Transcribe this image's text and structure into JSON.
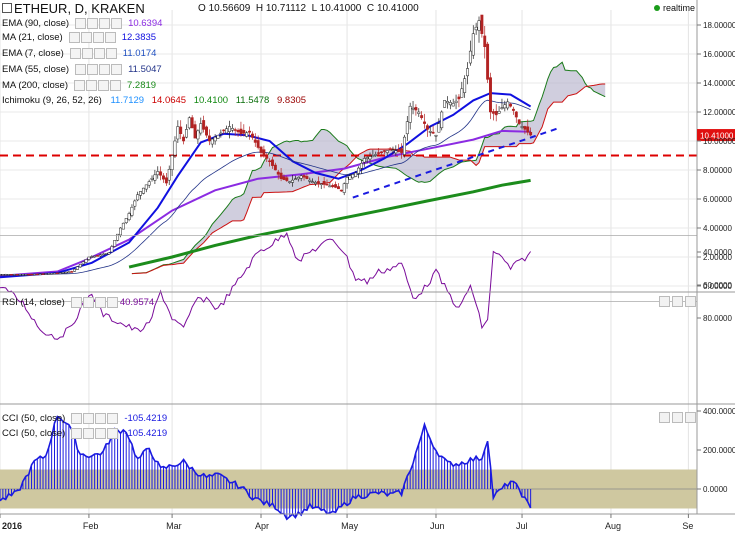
{
  "header": {
    "symbol": "ETHEUR, D, KRAKEN",
    "open_label": "O",
    "open": "10.56609",
    "high_label": "H",
    "high": "10.71112",
    "low_label": "L",
    "low": "10.41000",
    "close_label": "C",
    "close": "10.41000",
    "realtime": "realtime"
  },
  "legend": {
    "ema90": {
      "label": "EMA (90, close)",
      "value": "10.6394",
      "color": "#8b2be2"
    },
    "ma21": {
      "label": "MA (21, close)",
      "value": "12.3835",
      "color": "#1010e0"
    },
    "ema7": {
      "label": "EMA (7, close)",
      "value": "11.0174",
      "color": "#2050c0"
    },
    "ema55": {
      "label": "EMA (55, close)",
      "value": "11.5047",
      "color": "#223388"
    },
    "ma200": {
      "label": "MA (200, close)",
      "value": "7.2819",
      "color": "#1c8c1c"
    },
    "ichimoku": {
      "label": "Ichimoku (9, 26, 52, 26)",
      "values": [
        "11.7129",
        "14.0645",
        "10.4100",
        "11.5478",
        "9.8305"
      ],
      "colors": [
        "#1e90ff",
        "#cc0000",
        "#118811",
        "#0a6e0a",
        "#990000"
      ]
    },
    "rsi": {
      "label": "RSI (14, close)",
      "value": "40.9574",
      "color": "#7a0c9a"
    },
    "cci1": {
      "label": "CCI (50, close)",
      "value": "-105.4219",
      "color": "#1a1ae0"
    },
    "cci2": {
      "label": "CCI (50, close)",
      "value": "-105.4219",
      "color": "#1a1ae0"
    }
  },
  "colors": {
    "up": "#1f1f1f",
    "down": "#b22222",
    "resistance": "#dd0000",
    "trendline": "#1a1ae0",
    "rsi_band": "#d8d4ea",
    "cci_band": "#cfc8a0",
    "cloud": "#b7b3cc",
    "price_tag": "#e01010"
  },
  "chart_data": [
    {
      "type": "candlestick",
      "pane": "price",
      "y_ticks": [
        "18.00000",
        "16.00000",
        "14.00000",
        "12.00000",
        "10.00000",
        "8.00000",
        "6.00000",
        "4.00000",
        "2.00000",
        "0.00000"
      ],
      "ylim": [
        0,
        19
      ],
      "x_ticks": [
        "2016",
        "Feb",
        "Mar",
        "Apr",
        "May",
        "Jun",
        "Jul",
        "Aug",
        "Se"
      ],
      "last_price_label": "10.41000",
      "resistance_level": 9.0,
      "close_path": [
        [
          0,
          0.8
        ],
        [
          10,
          0.8
        ],
        [
          20,
          0.9
        ],
        [
          25,
          1.0
        ],
        [
          31,
          2.0
        ],
        [
          34,
          2.1
        ],
        [
          38,
          2.3
        ],
        [
          42,
          4.0
        ],
        [
          45,
          5.0
        ],
        [
          48,
          6.3
        ],
        [
          52,
          7.2
        ],
        [
          55,
          7.9
        ],
        [
          58,
          7.1
        ],
        [
          60,
          9.0
        ],
        [
          62,
          11.0
        ],
        [
          64,
          10.0
        ],
        [
          66,
          11.6
        ],
        [
          68,
          10.2
        ],
        [
          70,
          11.2
        ],
        [
          73,
          10.0
        ],
        [
          76,
          10.4
        ],
        [
          80,
          11.0
        ],
        [
          84,
          10.5
        ],
        [
          87,
          10.6
        ],
        [
          91,
          9.2
        ],
        [
          94,
          8.6
        ],
        [
          98,
          7.4
        ],
        [
          101,
          7.2
        ],
        [
          105,
          7.6
        ],
        [
          109,
          7.2
        ],
        [
          113,
          7.0
        ],
        [
          117,
          6.8
        ],
        [
          119,
          6.6
        ],
        [
          121,
          7.5
        ],
        [
          124,
          7.8
        ],
        [
          127,
          8.8
        ],
        [
          130,
          9.0
        ],
        [
          134,
          9.3
        ],
        [
          137,
          9.4
        ],
        [
          140,
          9.2
        ],
        [
          143,
          12.4
        ],
        [
          146,
          12.0
        ],
        [
          149,
          10.8
        ],
        [
          152,
          10.4
        ],
        [
          155,
          12.8
        ],
        [
          158,
          12.6
        ],
        [
          160,
          12.9
        ],
        [
          163,
          15.0
        ],
        [
          165,
          17.4
        ],
        [
          167,
          18.3
        ],
        [
          169,
          16.5
        ],
        [
          171,
          12.0
        ],
        [
          173,
          11.8
        ],
        [
          175,
          12.3
        ],
        [
          177,
          12.7
        ],
        [
          179,
          12.1
        ],
        [
          181,
          11.2
        ],
        [
          183,
          10.8
        ],
        [
          185,
          10.41
        ]
      ],
      "series": [
        {
          "name": "EMA (90, close)",
          "values": [
            [
              0,
              0.7
            ],
            [
              20,
              1.0
            ],
            [
              30,
              1.8
            ],
            [
              45,
              3.2
            ],
            [
              60,
              5.2
            ],
            [
              75,
              6.6
            ],
            [
              90,
              7.4
            ],
            [
              105,
              7.7
            ],
            [
              120,
              8.1
            ],
            [
              135,
              8.9
            ],
            [
              150,
              9.5
            ],
            [
              165,
              10.1
            ],
            [
              175,
              10.7
            ],
            [
              185,
              10.64
            ]
          ]
        },
        {
          "name": "MA (21, close)",
          "values": [
            [
              0,
              0.6
            ],
            [
              20,
              0.9
            ],
            [
              32,
              1.6
            ],
            [
              45,
              3.0
            ],
            [
              55,
              5.4
            ],
            [
              62,
              7.6
            ],
            [
              70,
              9.9
            ],
            [
              78,
              10.5
            ],
            [
              86,
              10.4
            ],
            [
              94,
              10.0
            ],
            [
              102,
              8.6
            ],
            [
              110,
              7.8
            ],
            [
              118,
              7.4
            ],
            [
              126,
              8.0
            ],
            [
              134,
              8.8
            ],
            [
              142,
              9.8
            ],
            [
              150,
              11.0
            ],
            [
              158,
              11.8
            ],
            [
              165,
              12.8
            ],
            [
              171,
              13.3
            ],
            [
              178,
              13.2
            ],
            [
              185,
              12.38
            ]
          ]
        },
        {
          "name": "MA (200, close)",
          "values": [
            [
              45,
              1.3
            ],
            [
              60,
              2.0
            ],
            [
              75,
              2.8
            ],
            [
              90,
              3.5
            ],
            [
              105,
              4.1
            ],
            [
              120,
              4.7
            ],
            [
              135,
              5.3
            ],
            [
              150,
              5.9
            ],
            [
              165,
              6.5
            ],
            [
              175,
              6.95
            ],
            [
              185,
              7.28
            ]
          ]
        },
        {
          "name": "Support trendline",
          "values": [
            [
              123,
              6.1
            ],
            [
              195,
              10.9
            ]
          ]
        }
      ]
    },
    {
      "type": "line",
      "pane": "rsi",
      "y_ticks": [
        "80.0000",
        "60.0000",
        "40.0000"
      ],
      "ylim": [
        25,
        95
      ],
      "band": [
        30,
        70
      ],
      "series": [
        {
          "name": "RSI (14, close)",
          "values": [
            [
              0,
              60
            ],
            [
              8,
              71
            ],
            [
              14,
              87
            ],
            [
              20,
              92
            ],
            [
              24,
              87
            ],
            [
              28,
              75
            ],
            [
              32,
              65
            ],
            [
              36,
              78
            ],
            [
              42,
              83
            ],
            [
              48,
              88
            ],
            [
              52,
              84
            ],
            [
              56,
              64
            ],
            [
              60,
              80
            ],
            [
              64,
              87
            ],
            [
              68,
              70
            ],
            [
              72,
              68
            ],
            [
              76,
              75
            ],
            [
              80,
              65
            ],
            [
              84,
              55
            ],
            [
              90,
              40
            ],
            [
              95,
              35
            ],
            [
              100,
              28
            ],
            [
              104,
              46
            ],
            [
              108,
              40
            ],
            [
              112,
              36
            ],
            [
              116,
              32
            ],
            [
              120,
              40
            ],
            [
              124,
              56
            ],
            [
              128,
              58
            ],
            [
              132,
              52
            ],
            [
              136,
              50
            ],
            [
              140,
              47
            ],
            [
              144,
              68
            ],
            [
              148,
              62
            ],
            [
              152,
              52
            ],
            [
              156,
              64
            ],
            [
              160,
              75
            ],
            [
              164,
              60
            ],
            [
              168,
              85
            ],
            [
              170,
              82
            ],
            [
              172,
              39
            ],
            [
              175,
              44
            ],
            [
              178,
              50
            ],
            [
              181,
              46
            ],
            [
              185,
              41
            ]
          ]
        }
      ]
    },
    {
      "type": "bar",
      "pane": "cci",
      "y_ticks": [
        "400.0000",
        "200.0000",
        "0.0000"
      ],
      "ylim": [
        -150,
        420
      ],
      "band": [
        -100,
        100
      ],
      "series": [
        {
          "name": "CCI (50, close)",
          "values": [
            [
              0,
              -60
            ],
            [
              6,
              -20
            ],
            [
              12,
              140
            ],
            [
              16,
              170
            ],
            [
              20,
              380
            ],
            [
              24,
              330
            ],
            [
              28,
              180
            ],
            [
              32,
              170
            ],
            [
              36,
              190
            ],
            [
              40,
              300
            ],
            [
              44,
              300
            ],
            [
              48,
              150
            ],
            [
              52,
              210
            ],
            [
              56,
              100
            ],
            [
              60,
              120
            ],
            [
              64,
              140
            ],
            [
              68,
              90
            ],
            [
              72,
              60
            ],
            [
              76,
              70
            ],
            [
              80,
              40
            ],
            [
              84,
              10
            ],
            [
              88,
              -40
            ],
            [
              92,
              -70
            ],
            [
              96,
              -90
            ],
            [
              100,
              -140
            ],
            [
              104,
              -130
            ],
            [
              108,
              -90
            ],
            [
              112,
              -110
            ],
            [
              116,
              -130
            ],
            [
              120,
              -80
            ],
            [
              124,
              -40
            ],
            [
              128,
              -30
            ],
            [
              132,
              -20
            ],
            [
              136,
              -30
            ],
            [
              140,
              -20
            ],
            [
              144,
              140
            ],
            [
              148,
              320
            ],
            [
              152,
              200
            ],
            [
              156,
              130
            ],
            [
              160,
              130
            ],
            [
              164,
              150
            ],
            [
              168,
              160
            ],
            [
              170,
              260
            ],
            [
              172,
              -40
            ],
            [
              175,
              0
            ],
            [
              178,
              40
            ],
            [
              181,
              0
            ],
            [
              185,
              -105
            ]
          ]
        }
      ]
    }
  ]
}
